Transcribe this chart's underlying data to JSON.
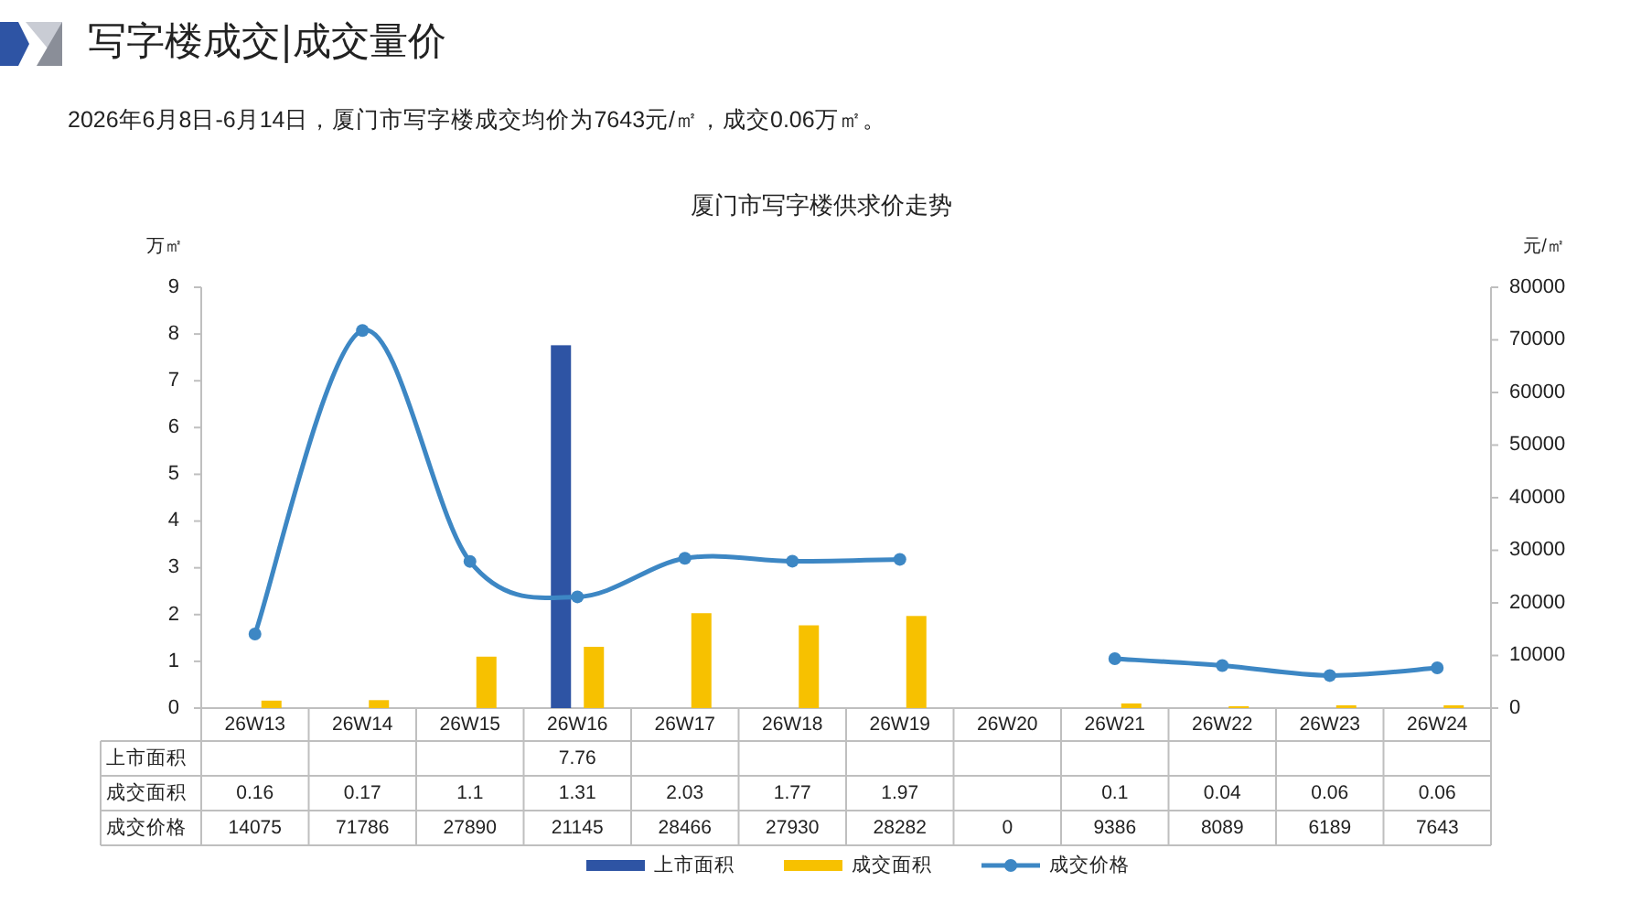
{
  "chart_data": {
    "type": "bar",
    "title": "写字楼成交|成交量价",
    "subtitle": "2026年6月8日-6月14日，厦门市写字楼成交均价为7643元/㎡，成交0.06万㎡。",
    "annotations": [
      "厦门市写字楼供求价走势"
    ],
    "categories": [
      "26W13",
      "26W14",
      "26W15",
      "26W16",
      "26W17",
      "26W18",
      "26W19",
      "26W20",
      "26W21",
      "26W22",
      "26W23",
      "26W24"
    ],
    "series": [
      {
        "name": "上市面积",
        "color": "#2e54a4",
        "values": [
          null,
          null,
          null,
          7.76,
          null,
          null,
          null,
          null,
          null,
          null,
          null,
          null
        ]
      },
      {
        "name": "成交面积",
        "color": "#f7c100",
        "values": [
          0.16,
          0.17,
          1.1,
          1.31,
          2.03,
          1.77,
          1.97,
          null,
          0.1,
          0.04,
          0.06,
          0.06
        ]
      },
      {
        "name": "成交价格",
        "type": "line",
        "axis": "y2",
        "color": "#3d87c4",
        "marker": "circle",
        "values": [
          14075,
          71786,
          27890,
          21145,
          28466,
          27930,
          28282,
          null,
          9386,
          8089,
          6189,
          7643
        ],
        "value_labels": [
          "14075",
          "71786",
          "27890",
          "21145",
          "28466",
          "27930",
          "28282",
          "0",
          "9386",
          "8089",
          "6189",
          "7643"
        ]
      }
    ],
    "ylabel": "万㎡",
    "y2label": "元/㎡",
    "ylim": [
      0,
      9
    ],
    "yticks": [
      0,
      1,
      2,
      3,
      4,
      5,
      6,
      7,
      8,
      9
    ],
    "y2lim": [
      0,
      80000
    ],
    "y2ticks": [
      0,
      10000,
      20000,
      30000,
      40000,
      50000,
      60000,
      70000,
      80000
    ],
    "data_labels": true,
    "legend": "bottom",
    "grid": false
  }
}
